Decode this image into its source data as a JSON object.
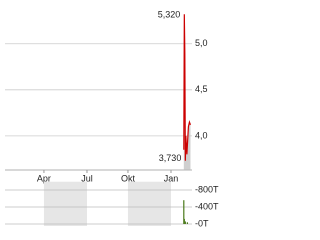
{
  "chart_data": [
    {
      "type": "line",
      "x": [
        349,
        350,
        351,
        352,
        353,
        355,
        358,
        360,
        362
      ],
      "series": [
        {
          "color": "#cc0000",
          "values": [
            3.85,
            5.32,
            4.9,
            3.73,
            4.0,
            3.8,
            4.1,
            4.15,
            4.12
          ]
        }
      ],
      "xlim": [
        0,
        365
      ],
      "xticks": [
        {
          "value": 76,
          "label": "Apr"
        },
        {
          "value": 160,
          "label": "Jul"
        },
        {
          "value": 240,
          "label": "Okt"
        },
        {
          "value": 324,
          "label": "Jan"
        }
      ],
      "ylim": [
        3.63,
        5.42
      ],
      "yticks": [
        {
          "value": 4.0,
          "label": "4,0"
        },
        {
          "value": 4.5,
          "label": "4,5"
        },
        {
          "value": 5.0,
          "label": "5,0"
        }
      ],
      "annotations": [
        {
          "value": 5.32,
          "label": "5,320"
        },
        {
          "value": 3.73,
          "label": "3,730"
        }
      ],
      "grid": true
    },
    {
      "type": "bar",
      "x": [
        349,
        350,
        352,
        356
      ],
      "series": [
        {
          "color": "#4a7a1a",
          "values": [
            560000,
            120000,
            60000,
            40000
          ]
        }
      ],
      "xlim": [
        0,
        365
      ],
      "ylim": [
        0,
        900000
      ],
      "yticks": [
        {
          "value": 0,
          "label": "-0T"
        },
        {
          "value": 400000,
          "label": "-400T"
        },
        {
          "value": 800000,
          "label": "-800T"
        }
      ],
      "grid": true
    }
  ]
}
